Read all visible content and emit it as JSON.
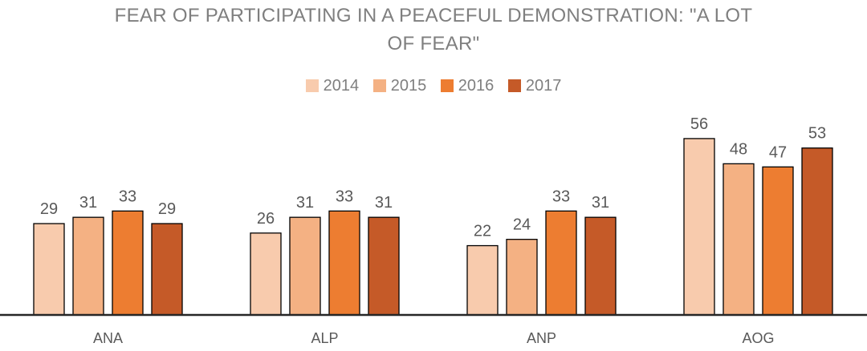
{
  "chart_data": {
    "type": "bar",
    "title_line1": "FEAR OF PARTICIPATING IN A PEACEFUL DEMONSTRATION: \"A LOT",
    "title_line2": "OF FEAR\"",
    "categories": [
      "ANA",
      "ALP",
      "ANP",
      "AOG"
    ],
    "series": [
      {
        "name": "2014",
        "color": "#f8cbad",
        "values": [
          29,
          26,
          22,
          56
        ]
      },
      {
        "name": "2015",
        "color": "#f4b183",
        "values": [
          31,
          31,
          24,
          48
        ]
      },
      {
        "name": "2016",
        "color": "#ed7d31",
        "values": [
          33,
          33,
          33,
          47
        ]
      },
      {
        "name": "2017",
        "color": "#c55a28",
        "values": [
          29,
          31,
          31,
          53
        ]
      }
    ],
    "ylim": [
      0,
      60
    ],
    "grid": false,
    "legend_position": "top-center",
    "data_labels": true
  }
}
